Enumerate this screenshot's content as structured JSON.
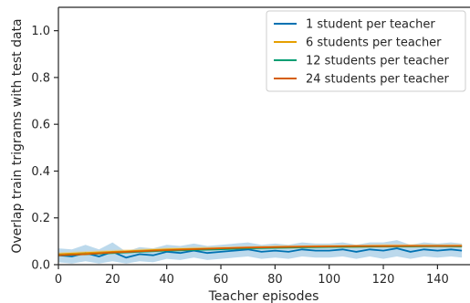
{
  "chart_data": {
    "type": "line",
    "title": "",
    "xlabel": "Teacher episodes",
    "ylabel": "Overlap train trigrams with test data",
    "xlim": [
      0,
      152
    ],
    "ylim": [
      0,
      1.1
    ],
    "xticks": [
      0,
      20,
      40,
      60,
      80,
      100,
      120,
      140
    ],
    "yticks": [
      0.0,
      0.2,
      0.4,
      0.6,
      0.8,
      1.0
    ],
    "xtick_labels": [
      "0",
      "20",
      "40",
      "60",
      "80",
      "100",
      "120",
      "140"
    ],
    "ytick_labels": [
      "0.0",
      "0.2",
      "0.4",
      "0.6",
      "0.8",
      "1.0"
    ],
    "grid": false,
    "legend_position": "top-right",
    "series": [
      {
        "name": "1 student per teacher",
        "color": "#0072b2",
        "band_color": "#8fbfdf",
        "x": [
          0,
          5,
          10,
          15,
          20,
          25,
          30,
          35,
          40,
          45,
          50,
          55,
          60,
          65,
          70,
          75,
          80,
          85,
          90,
          95,
          100,
          105,
          110,
          115,
          120,
          125,
          130,
          135,
          140,
          145,
          149
        ],
        "y": [
          0.04,
          0.035,
          0.05,
          0.035,
          0.055,
          0.03,
          0.045,
          0.04,
          0.055,
          0.05,
          0.06,
          0.05,
          0.055,
          0.06,
          0.065,
          0.055,
          0.06,
          0.055,
          0.065,
          0.06,
          0.06,
          0.065,
          0.055,
          0.065,
          0.06,
          0.07,
          0.055,
          0.065,
          0.06,
          0.065,
          0.06
        ],
        "band": [
          0.03,
          0.03,
          0.035,
          0.03,
          0.04,
          0.025,
          0.03,
          0.03,
          0.03,
          0.03,
          0.03,
          0.03,
          0.03,
          0.03,
          0.03,
          0.03,
          0.03,
          0.03,
          0.03,
          0.03,
          0.03,
          0.03,
          0.03,
          0.03,
          0.035,
          0.035,
          0.03,
          0.03,
          0.03,
          0.03,
          0.03
        ]
      },
      {
        "name": "6 students per teacher",
        "color": "#e69f00",
        "band_color": "#f3cf80",
        "x": [
          0,
          10,
          20,
          30,
          40,
          50,
          60,
          70,
          80,
          90,
          100,
          110,
          120,
          130,
          140,
          149
        ],
        "y": [
          0.045,
          0.05,
          0.055,
          0.06,
          0.065,
          0.068,
          0.07,
          0.072,
          0.075,
          0.076,
          0.078,
          0.078,
          0.08,
          0.08,
          0.08,
          0.08
        ],
        "band": [
          0.008,
          0.008,
          0.008,
          0.008,
          0.008,
          0.008,
          0.008,
          0.008,
          0.008,
          0.008,
          0.008,
          0.008,
          0.008,
          0.008,
          0.008,
          0.008
        ]
      },
      {
        "name": "12 students per teacher",
        "color": "#009e73",
        "band_color": "#80cfb9",
        "x": [
          0,
          10,
          20,
          30,
          40,
          50,
          60,
          70,
          80,
          90,
          100,
          110,
          120,
          130,
          140,
          149
        ],
        "y": [
          0.04,
          0.045,
          0.05,
          0.055,
          0.06,
          0.063,
          0.066,
          0.07,
          0.072,
          0.074,
          0.076,
          0.077,
          0.078,
          0.078,
          0.079,
          0.078
        ],
        "band": [
          0.006,
          0.006,
          0.006,
          0.006,
          0.006,
          0.006,
          0.006,
          0.006,
          0.006,
          0.006,
          0.006,
          0.006,
          0.006,
          0.006,
          0.006,
          0.006
        ]
      },
      {
        "name": "24 students per teacher",
        "color": "#d55e00",
        "band_color": "#eaae80",
        "x": [
          0,
          10,
          20,
          30,
          40,
          50,
          60,
          70,
          80,
          90,
          100,
          110,
          120,
          130,
          140,
          149
        ],
        "y": [
          0.04,
          0.045,
          0.052,
          0.057,
          0.062,
          0.066,
          0.07,
          0.073,
          0.075,
          0.077,
          0.078,
          0.079,
          0.079,
          0.08,
          0.08,
          0.08
        ],
        "band": [
          0.005,
          0.005,
          0.005,
          0.005,
          0.005,
          0.005,
          0.005,
          0.005,
          0.005,
          0.005,
          0.005,
          0.005,
          0.005,
          0.005,
          0.005,
          0.005
        ]
      }
    ]
  }
}
